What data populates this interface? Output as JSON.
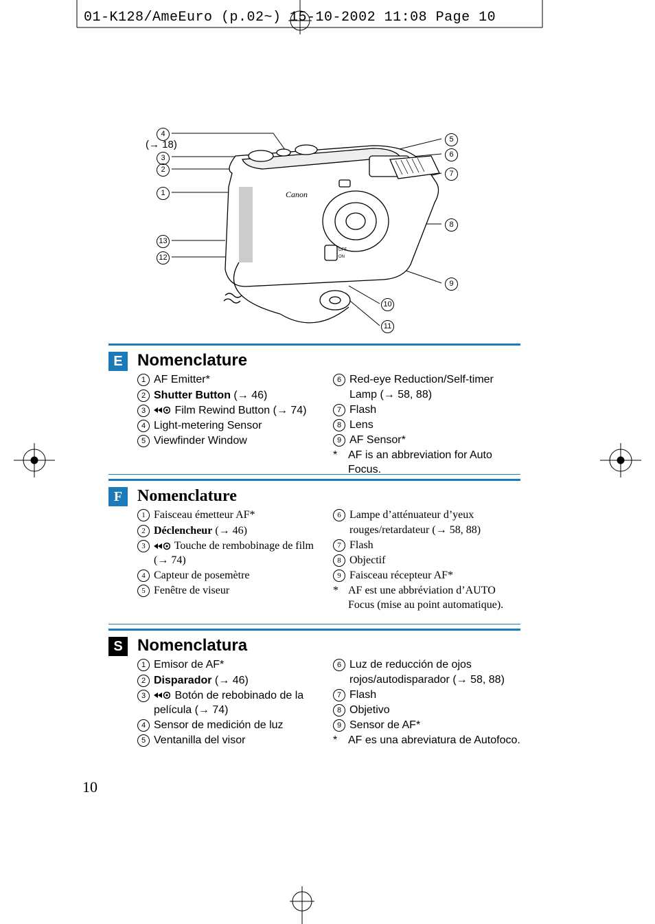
{
  "header": "01-K128/AmeEuro (p.02~)  15-10-2002  11:08  Page 10",
  "page_number": "10",
  "diagram": {
    "ref18": "(→ 18)",
    "left_callouts": [
      4,
      3,
      2,
      1,
      13,
      12
    ],
    "right_callouts": [
      5,
      6,
      7,
      8,
      9
    ],
    "bottom_callouts": [
      10,
      11
    ]
  },
  "colors": {
    "accent": "#1a7bb8",
    "badge_bg": "#1a7bb8",
    "badge_fg": "#ffffff",
    "badge_s_bg": "#000000",
    "text": "#000000"
  },
  "sections": [
    {
      "lang": "E",
      "title": "Nomenclature",
      "title_serif": false,
      "left": [
        {
          "n": 1,
          "bold": false,
          "icon": false,
          "text": "AF Emitter*"
        },
        {
          "n": 2,
          "bold": true,
          "icon": false,
          "text": "Shutter Button",
          "after": " (→ 46)"
        },
        {
          "n": 3,
          "bold": false,
          "icon": true,
          "text": "Film Rewind Button (→ 74)"
        },
        {
          "n": 4,
          "bold": false,
          "icon": false,
          "text": "Light-metering Sensor"
        },
        {
          "n": 5,
          "bold": false,
          "icon": false,
          "text": "Viewfinder Window"
        }
      ],
      "right": [
        {
          "n": 6,
          "bold": false,
          "icon": false,
          "text": "Red-eye Reduction/Self-timer Lamp (→ 58, 88)"
        },
        {
          "n": 7,
          "bold": false,
          "icon": false,
          "text": "Flash"
        },
        {
          "n": 8,
          "bold": false,
          "icon": false,
          "text": "Lens"
        },
        {
          "n": 9,
          "bold": false,
          "icon": false,
          "text": "AF Sensor*"
        }
      ],
      "note": "AF is an abbreviation for Auto Focus."
    },
    {
      "lang": "F",
      "title": "Nomenclature",
      "title_serif": true,
      "left": [
        {
          "n": 1,
          "bold": false,
          "icon": false,
          "text": "Faisceau émetteur AF*"
        },
        {
          "n": 2,
          "bold": true,
          "icon": false,
          "text": "Déclencheur",
          "after": " (→ 46)"
        },
        {
          "n": 3,
          "bold": false,
          "icon": true,
          "text": "Touche de rembobinage de film (→ 74)"
        },
        {
          "n": 4,
          "bold": false,
          "icon": false,
          "text": "Capteur de posemètre"
        },
        {
          "n": 5,
          "bold": false,
          "icon": false,
          "text": "Fenêtre de viseur"
        }
      ],
      "right": [
        {
          "n": 6,
          "bold": false,
          "icon": false,
          "text": "Lampe d’atténuateur d’yeux rouges/retardateur (→ 58, 88)"
        },
        {
          "n": 7,
          "bold": false,
          "icon": false,
          "text": "Flash"
        },
        {
          "n": 8,
          "bold": false,
          "icon": false,
          "text": "Objectif"
        },
        {
          "n": 9,
          "bold": false,
          "icon": false,
          "text": "Faisceau récepteur AF*"
        }
      ],
      "note": "AF est une abbréviation d’AUTO Focus (mise au point automatique)."
    },
    {
      "lang": "S",
      "title": "Nomenclatura",
      "title_serif": false,
      "left": [
        {
          "n": 1,
          "bold": false,
          "icon": false,
          "text": "Emisor de AF*"
        },
        {
          "n": 2,
          "bold": true,
          "icon": false,
          "text": "Disparador",
          "after": " (→ 46)"
        },
        {
          "n": 3,
          "bold": false,
          "icon": true,
          "text": "Botón de rebobinado de la película (→ 74)"
        },
        {
          "n": 4,
          "bold": false,
          "icon": false,
          "text": "Sensor de medición de luz"
        },
        {
          "n": 5,
          "bold": false,
          "icon": false,
          "text": "Ventanilla del visor"
        }
      ],
      "right": [
        {
          "n": 6,
          "bold": false,
          "icon": false,
          "text": "Luz de reducción de ojos rojos/autodisparador (→ 58, 88)"
        },
        {
          "n": 7,
          "bold": false,
          "icon": false,
          "text": "Flash"
        },
        {
          "n": 8,
          "bold": false,
          "icon": false,
          "text": "Objetivo"
        },
        {
          "n": 9,
          "bold": false,
          "icon": false,
          "text": "Sensor de AF*"
        }
      ],
      "note": "AF es una abreviatura de Autofoco."
    }
  ]
}
